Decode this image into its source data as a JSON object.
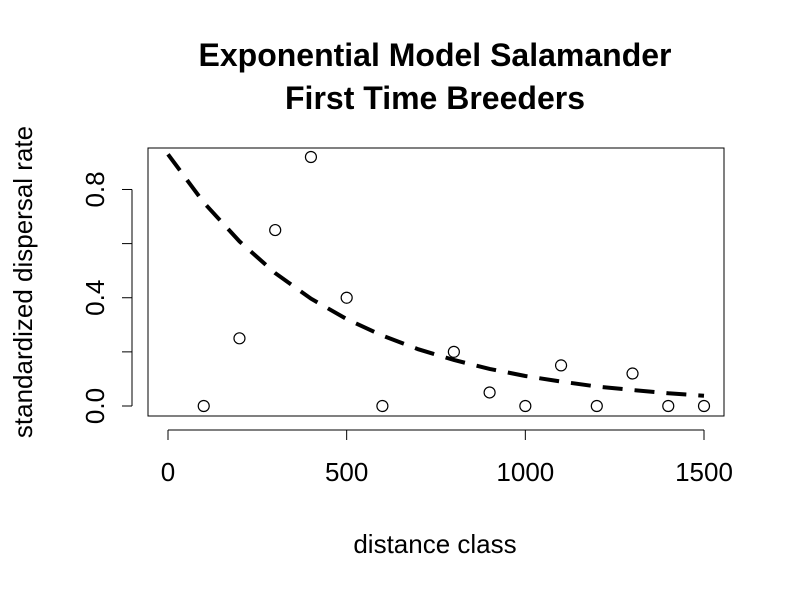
{
  "chart_data": {
    "type": "scatter",
    "title_line1": "Exponential Model Salamander",
    "title_line2": "First Time Breeders",
    "xlabel": "distance class",
    "ylabel": "standardized dispersal rate",
    "xlim": [
      0,
      1500
    ],
    "ylim": [
      0,
      0.92
    ],
    "x_ticks": [
      0,
      500,
      1000,
      1500
    ],
    "x_tick_labels": [
      "0",
      "500",
      "1000",
      "1500"
    ],
    "y_ticks": [
      0.0,
      0.2,
      0.4,
      0.6,
      0.8
    ],
    "y_tick_labels": [
      "0.0",
      "",
      "0.4",
      "",
      "0.8"
    ],
    "grid": false,
    "points": {
      "x": [
        100,
        200,
        300,
        400,
        500,
        600,
        800,
        900,
        1000,
        1100,
        1200,
        1300,
        1400,
        1500
      ],
      "y": [
        0.0,
        0.25,
        0.65,
        0.92,
        0.4,
        0.0,
        0.2,
        0.05,
        0.0,
        0.15,
        0.0,
        0.12,
        0.0,
        0.0
      ]
    },
    "fit_curve": {
      "style": "dashed",
      "x": [
        0,
        100,
        200,
        300,
        400,
        500,
        600,
        700,
        800,
        900,
        1000,
        1100,
        1200,
        1300,
        1400,
        1500
      ],
      "y": [
        0.93,
        0.752,
        0.608,
        0.491,
        0.397,
        0.321,
        0.26,
        0.21,
        0.17,
        0.137,
        0.111,
        0.09,
        0.072,
        0.059,
        0.047,
        0.038
      ]
    },
    "colors": {
      "points": "#000000",
      "curve": "#000000",
      "axes": "#000000"
    }
  }
}
